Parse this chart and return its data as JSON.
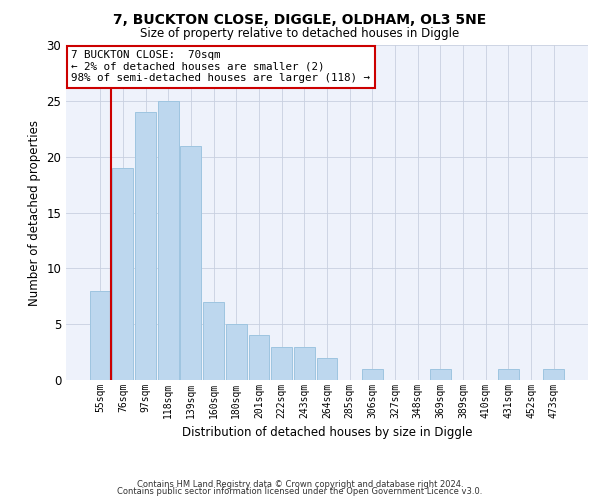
{
  "title1": "7, BUCKTON CLOSE, DIGGLE, OLDHAM, OL3 5NE",
  "title2": "Size of property relative to detached houses in Diggle",
  "xlabel": "Distribution of detached houses by size in Diggle",
  "ylabel": "Number of detached properties",
  "categories": [
    "55sqm",
    "76sqm",
    "97sqm",
    "118sqm",
    "139sqm",
    "160sqm",
    "180sqm",
    "201sqm",
    "222sqm",
    "243sqm",
    "264sqm",
    "285sqm",
    "306sqm",
    "327sqm",
    "348sqm",
    "369sqm",
    "389sqm",
    "410sqm",
    "431sqm",
    "452sqm",
    "473sqm"
  ],
  "values": [
    8,
    19,
    24,
    25,
    21,
    7,
    5,
    4,
    3,
    3,
    2,
    0,
    1,
    0,
    0,
    1,
    0,
    0,
    1,
    0,
    1
  ],
  "bar_color": "#bdd7ee",
  "bar_edge_color": "#9ec5e0",
  "marker_color": "#cc0000",
  "annotation_text": "7 BUCKTON CLOSE:  70sqm\n← 2% of detached houses are smaller (2)\n98% of semi-detached houses are larger (118) →",
  "annotation_box_color": "#ffffff",
  "annotation_box_edge_color": "#cc0000",
  "ylim": [
    0,
    30
  ],
  "yticks": [
    0,
    5,
    10,
    15,
    20,
    25,
    30
  ],
  "footer1": "Contains HM Land Registry data © Crown copyright and database right 2024.",
  "footer2": "Contains public sector information licensed under the Open Government Licence v3.0.",
  "bg_color": "#eef2fb",
  "grid_color": "#c8d0e0"
}
